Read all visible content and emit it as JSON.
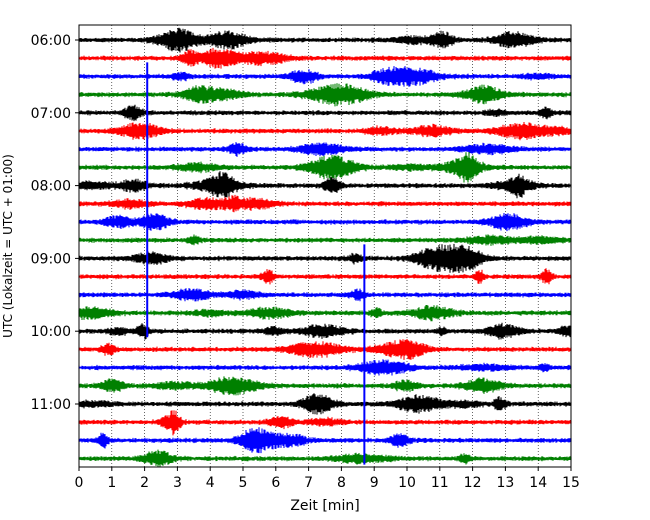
{
  "chart_data": {
    "type": "line",
    "title": "",
    "xlabel": "Zeit  [min]",
    "ylabel": "UTC (Lokalzeit = UTC + 01:00)",
    "xlim": [
      0,
      15
    ],
    "x_ticks": [
      "0",
      "1",
      "2",
      "3",
      "4",
      "5",
      "6",
      "7",
      "8",
      "9",
      "10",
      "11",
      "12",
      "13",
      "14",
      "15"
    ],
    "y_tick_labels": [
      "06:00",
      "07:00",
      "08:00",
      "09:00",
      "10:00",
      "11:00"
    ],
    "y_tick_rows": [
      0,
      4,
      8,
      12,
      16,
      20
    ],
    "grid": "vertical dotted at each minute",
    "color_cycle": [
      "#000000",
      "#ff0000",
      "#0000ff",
      "#008000"
    ],
    "row_count": 24,
    "row_interval_minutes": 15,
    "events": [
      {
        "row": 2,
        "x": 2.08,
        "color": "#0000ff",
        "extends_to_row": 16
      },
      {
        "row": 12,
        "x": 8.7,
        "color": "#0000ff",
        "extends_to_row": 23
      }
    ]
  }
}
